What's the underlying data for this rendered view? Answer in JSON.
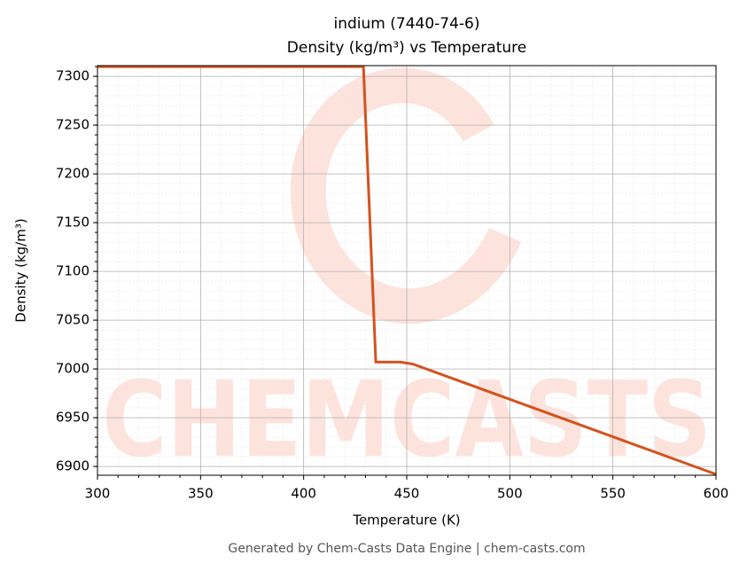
{
  "chart_data": {
    "type": "line",
    "title": "indium (7440-74-6)",
    "subtitle": "Density (kg/m³) vs Temperature",
    "xlabel": "Temperature (K)",
    "ylabel": "Density (kg/m³)",
    "footer": "Generated by Chem-Casts Data Engine | chem-casts.com",
    "watermark": "CHEMCASTS",
    "x": [
      300,
      429,
      435,
      447,
      453,
      600
    ],
    "series": [
      {
        "name": "Density",
        "color": "#d4521f",
        "values": [
          7310,
          7310,
          7007,
          7007,
          7005,
          6892
        ]
      }
    ],
    "xlim": [
      300,
      600
    ],
    "xticks": [
      300,
      350,
      400,
      450,
      500,
      550,
      600
    ],
    "ylim": [
      6891,
      7311
    ],
    "yticks": [
      6900,
      6950,
      7000,
      7050,
      7100,
      7150,
      7200,
      7250,
      7300
    ],
    "grid": true
  }
}
